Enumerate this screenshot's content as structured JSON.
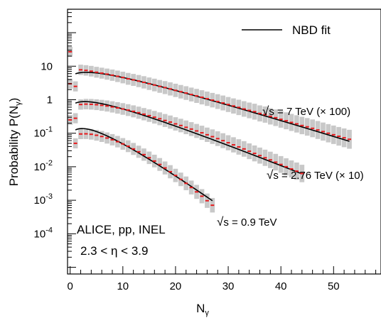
{
  "chart_data": {
    "type": "scatter",
    "xlabel": "N",
    "xlabel_sub": "γ",
    "ylabel": "Probability P(N",
    "ylabel_sub": "γ",
    "ylabel_close": ")",
    "xlim": [
      -0.5,
      59
    ],
    "ylim_log10": [
      -5.2,
      2.7
    ],
    "y_scale": "log",
    "x_ticks": [
      0,
      10,
      20,
      30,
      40,
      50
    ],
    "x_tick_labels": [
      "0",
      "10",
      "20",
      "30",
      "40",
      "50"
    ],
    "y_ticks_pow": [
      -4,
      -3,
      -2,
      -1,
      0,
      1
    ],
    "y_tick_labels": [
      {
        "base": "10",
        "exp": "-4"
      },
      {
        "base": "10",
        "exp": "-3"
      },
      {
        "base": "10",
        "exp": "-2"
      },
      {
        "base": "10",
        "exp": "-1"
      },
      {
        "base": "",
        "exp": "",
        "plain": "1"
      },
      {
        "base": "",
        "exp": "",
        "plain": "10"
      }
    ],
    "legend": {
      "label": "NBD fit",
      "position": "top-right"
    },
    "annotation_lines": [
      "ALICE, pp, INEL",
      "2.3 < η < 3.9"
    ],
    "colors": {
      "data": "#e8191c",
      "error_band": "#c8c8c8",
      "fit": "#000000"
    },
    "series": [
      {
        "name_sqrt": "√",
        "name": "s = 7 TeV (× 100)",
        "scale": 100,
        "x_first": 0,
        "x_last": 53,
        "fit": {
          "mean": 11.5,
          "k": 1.45
        },
        "values": [
          27.0,
          2.5,
          7.8,
          7.5,
          7.1,
          6.6,
          6.2,
          5.8,
          5.4,
          5.0,
          4.6,
          4.2,
          3.9,
          3.6,
          3.3,
          3.0,
          2.75,
          2.5,
          2.3,
          2.1,
          1.9,
          1.73,
          1.58,
          1.43,
          1.3,
          1.18,
          1.07,
          0.97,
          0.88,
          0.8,
          0.72,
          0.65,
          0.59,
          0.53,
          0.48,
          0.44,
          0.39,
          0.36,
          0.32,
          0.29,
          0.26,
          0.235,
          0.21,
          0.19,
          0.17,
          0.155,
          0.14,
          0.125,
          0.112,
          0.1,
          0.09,
          0.081,
          0.073,
          0.066
        ]
      },
      {
        "name_sqrt": "√",
        "name": "s = 2.76 TeV (× 10)",
        "scale": 10,
        "x_first": 0,
        "x_last": 44,
        "fit": {
          "mean": 9.3,
          "k": 1.55
        },
        "values": [
          3.0,
          0.28,
          0.72,
          0.74,
          0.73,
          0.71,
          0.68,
          0.65,
          0.61,
          0.57,
          0.53,
          0.49,
          0.45,
          0.41,
          0.37,
          0.335,
          0.3,
          0.27,
          0.24,
          0.215,
          0.19,
          0.17,
          0.15,
          0.133,
          0.117,
          0.103,
          0.09,
          0.079,
          0.069,
          0.06,
          0.052,
          0.045,
          0.039,
          0.034,
          0.029,
          0.025,
          0.0215,
          0.0185,
          0.016,
          0.0137,
          0.0117,
          0.01,
          0.0086,
          0.0074,
          0.0063
        ]
      },
      {
        "name_sqrt": "√",
        "name": "s = 0.9 TeV",
        "scale": 1,
        "x_first": 0,
        "x_last": 27,
        "fit": {
          "mean": 5.9,
          "k": 1.9
        },
        "values": [
          0.25,
          0.05,
          0.095,
          0.096,
          0.093,
          0.087,
          0.08,
          0.072,
          0.064,
          0.056,
          0.048,
          0.041,
          0.034,
          0.028,
          0.023,
          0.0185,
          0.0148,
          0.0117,
          0.0092,
          0.0071,
          0.0055,
          0.0042,
          0.0032,
          0.0024,
          0.00178,
          0.00132,
          0.00097,
          0.00071
        ]
      }
    ]
  }
}
